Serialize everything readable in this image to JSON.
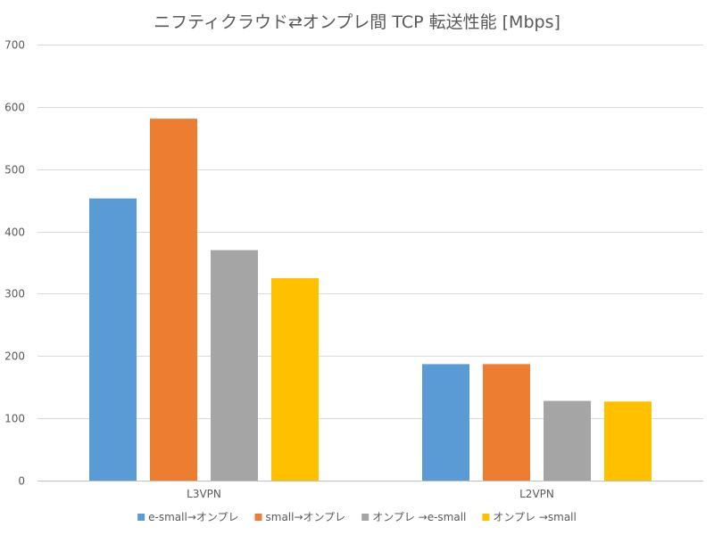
{
  "chart_data": {
    "type": "bar",
    "title": "ニフティクラウド⇄オンプレ間 TCP 転送性能 [Mbps]",
    "xlabel": "",
    "ylabel": "",
    "ylim": [
      0,
      700
    ],
    "yticks": [
      0,
      100,
      200,
      300,
      400,
      500,
      600,
      700
    ],
    "grid": true,
    "legend_position": "bottom",
    "categories": [
      "L3VPN",
      "L2VPN"
    ],
    "series": [
      {
        "name": "e-small→オンプレ",
        "color": "#5b9bd5",
        "values": [
          453,
          187
        ]
      },
      {
        "name": "small→オンプレ",
        "color": "#ed7d31",
        "values": [
          581,
          187
        ]
      },
      {
        "name": "オンプレ →e-small",
        "color": "#a5a5a5",
        "values": [
          370,
          128
        ]
      },
      {
        "name": "オンプレ →small",
        "color": "#ffc000",
        "values": [
          325,
          127
        ]
      }
    ]
  }
}
